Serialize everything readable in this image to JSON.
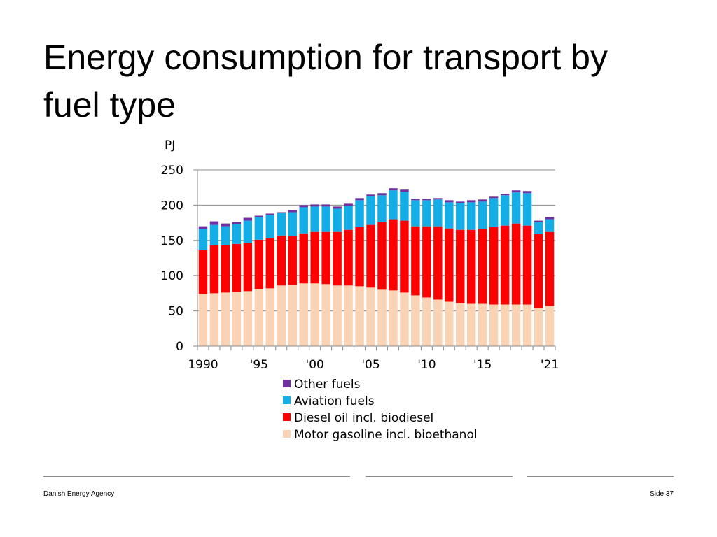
{
  "slide": {
    "title": "Energy consumption for transport by fuel type",
    "footer": {
      "left_text": "Danish Energy Agency",
      "right_text": "Side 37"
    }
  },
  "chart_data": {
    "type": "bar",
    "stacked": true,
    "title": "",
    "ylabel": "PJ",
    "xlabel": "",
    "ylim": [
      0,
      250
    ],
    "yticks": [
      0,
      50,
      100,
      150,
      200,
      250
    ],
    "grid": true,
    "categories": [
      "1990",
      "1991",
      "1992",
      "1993",
      "1994",
      "1995",
      "1996",
      "1997",
      "1998",
      "1999",
      "2000",
      "2001",
      "2002",
      "2003",
      "2004",
      "2005",
      "2006",
      "2007",
      "2008",
      "2009",
      "2010",
      "2011",
      "2012",
      "2013",
      "2014",
      "2015",
      "2016",
      "2017",
      "2018",
      "2019",
      "2020",
      "2021"
    ],
    "xtick_labels": [
      {
        "index": 0,
        "label": "1990"
      },
      {
        "index": 5,
        "label": "'95"
      },
      {
        "index": 10,
        "label": "'00"
      },
      {
        "index": 15,
        "label": "'05"
      },
      {
        "index": 20,
        "label": "'10"
      },
      {
        "index": 25,
        "label": "'15"
      },
      {
        "index": 31,
        "label": "'21"
      }
    ],
    "legend_position": "below",
    "series": [
      {
        "name": "Motor gasoline incl. bioethanol",
        "color": "#f9d3b4",
        "values": [
          74,
          75,
          76,
          77,
          78,
          81,
          82,
          86,
          87,
          89,
          89,
          88,
          86,
          86,
          85,
          83,
          80,
          79,
          76,
          72,
          69,
          66,
          63,
          61,
          60,
          60,
          59,
          59,
          59,
          59,
          54,
          57
        ]
      },
      {
        "name": "Diesel oil incl. biodiesel",
        "color": "#ff0000",
        "values": [
          62,
          68,
          67,
          68,
          68,
          70,
          71,
          71,
          69,
          71,
          73,
          74,
          76,
          79,
          84,
          89,
          96,
          101,
          102,
          98,
          101,
          104,
          104,
          104,
          105,
          106,
          110,
          112,
          115,
          112,
          105,
          105
        ]
      },
      {
        "name": "Aviation fuels",
        "color": "#13aee8",
        "values": [
          30,
          29,
          27,
          28,
          32,
          32,
          33,
          32,
          34,
          37,
          36,
          36,
          33,
          34,
          38,
          41,
          38,
          41,
          41,
          37,
          37,
          38,
          37,
          38,
          39,
          39,
          41,
          43,
          44,
          46,
          17,
          18
        ]
      },
      {
        "name": "Other fuels",
        "color": "#7030a0",
        "values": [
          4,
          5,
          4,
          3,
          4,
          2,
          2,
          1,
          3,
          3,
          3,
          3,
          3,
          3,
          3,
          2,
          3,
          3,
          3,
          2,
          2,
          2,
          3,
          2,
          3,
          3,
          2,
          2,
          3,
          3,
          2,
          3
        ]
      }
    ]
  }
}
